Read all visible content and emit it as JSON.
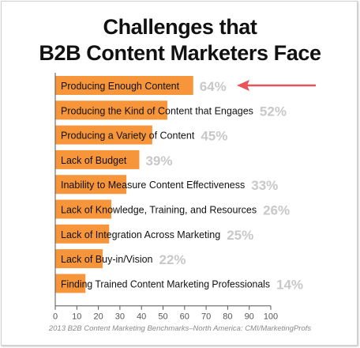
{
  "chart_data": {
    "type": "bar",
    "orientation": "horizontal",
    "title_lines": [
      "Challenges that",
      "B2B Content Marketers Face"
    ],
    "categories": [
      "Producing Enough Content",
      "Producing the Kind of Content that Engages",
      "Producing a Variety of Content",
      "Lack of Budget",
      "Inability to Measure Content Effectiveness",
      "Lack of Knowledge, Training, and Resources",
      "Lack of Integration Across Marketing",
      "Lack of Buy-in/Vision",
      "Finding Trained Content Marketing Professionals"
    ],
    "values": [
      64,
      52,
      45,
      39,
      33,
      26,
      25,
      22,
      14
    ],
    "value_labels": [
      "64%",
      "52%",
      "45%",
      "39%",
      "33%",
      "26%",
      "25%",
      "22%",
      "14%"
    ],
    "xlim": [
      0,
      100
    ],
    "x_ticks": [
      "0",
      "10",
      "20",
      "30",
      "40",
      "50",
      "60",
      "70",
      "80",
      "90",
      "100"
    ],
    "grid": false,
    "legend": "none",
    "annotation": {
      "type": "arrow",
      "target": "Producing Enough Content"
    },
    "source": "2013 B2B Content Marketing Benchmarks–North America: CMI/MarketingProfs"
  },
  "colors": {
    "bar": "#f7953b",
    "value_label": "#c8c8c8",
    "arrow": "#e8535b",
    "axis": "#555555"
  }
}
